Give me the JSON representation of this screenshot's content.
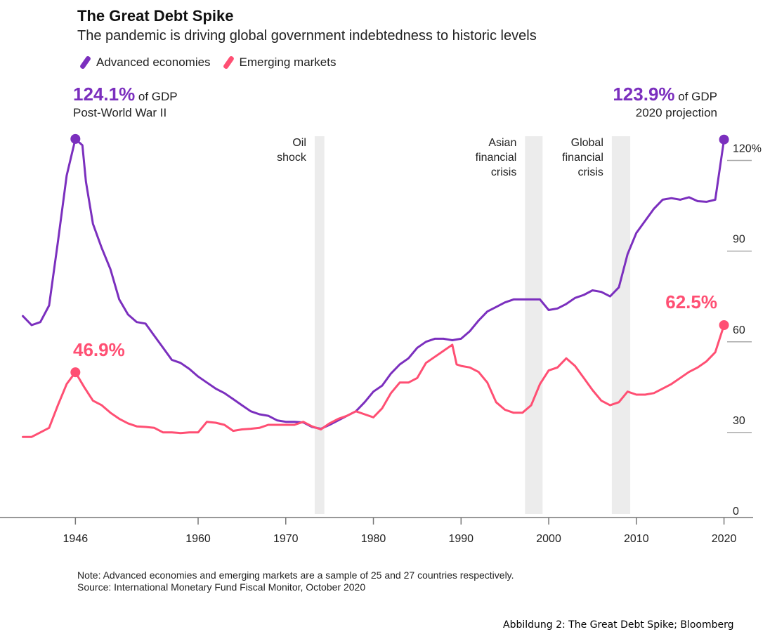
{
  "colors": {
    "advanced": "#7b2fbe",
    "emerging": "#ff4f73",
    "shade": "#ececec",
    "axis": "#aaaaaa"
  },
  "legend": {
    "advanced": "Advanced economies",
    "emerging": "Emerging markets"
  },
  "peaks": {
    "left": {
      "value": "124.1%",
      "unit": " of GDP",
      "note": "Post-World War II"
    },
    "right": {
      "value": "123.9%",
      "unit": " of GDP",
      "note": "2020 projection"
    },
    "em_left": "46.9%",
    "em_right": "62.5%"
  },
  "chart_data": {
    "type": "line",
    "title": "The Great Debt Spike",
    "subtitle": "The pandemic is driving global government indebtedness to historic levels",
    "xlabel": "",
    "ylabel": "",
    "xlim": [
      1939,
      2023
    ],
    "ylim": [
      0,
      125
    ],
    "x_ticks": [
      1946,
      1960,
      1970,
      1980,
      1990,
      2000,
      2010,
      2020
    ],
    "y_ticks": [
      {
        "value": 0,
        "label": "0"
      },
      {
        "value": 30,
        "label": "30"
      },
      {
        "value": 60,
        "label": "60"
      },
      {
        "value": 90,
        "label": "90"
      },
      {
        "value": 120,
        "label": "120%"
      }
    ],
    "grid": false,
    "legend_position": "top-left",
    "shaded_periods": [
      {
        "label": "Oil shock",
        "start": 1973.3,
        "end": 1974.4
      },
      {
        "label": "Asian financial crisis",
        "start": 1997.3,
        "end": 1999.3
      },
      {
        "label": "Global financial crisis",
        "start": 2007.2,
        "end": 2009.3
      }
    ],
    "series": [
      {
        "name": "Advanced economies",
        "points": [
          [
            1940,
            65.5
          ],
          [
            1941,
            62.5
          ],
          [
            1942,
            63.5
          ],
          [
            1943,
            69
          ],
          [
            1944,
            90
          ],
          [
            1945,
            112
          ],
          [
            1946,
            124.1
          ],
          [
            1946.8,
            122
          ],
          [
            1947.2,
            110
          ],
          [
            1948,
            96
          ],
          [
            1949,
            88
          ],
          [
            1950,
            81
          ],
          [
            1951,
            71
          ],
          [
            1952,
            66
          ],
          [
            1953,
            63.5
          ],
          [
            1954,
            63
          ],
          [
            1955,
            59
          ],
          [
            1956,
            55
          ],
          [
            1957,
            51
          ],
          [
            1958,
            50
          ],
          [
            1959,
            48
          ],
          [
            1960,
            45.5
          ],
          [
            1961,
            43.5
          ],
          [
            1962,
            41.5
          ],
          [
            1963,
            40
          ],
          [
            1964,
            38
          ],
          [
            1965,
            36
          ],
          [
            1966,
            34
          ],
          [
            1967,
            33
          ],
          [
            1968,
            32.5
          ],
          [
            1969,
            31
          ],
          [
            1970,
            30.5
          ],
          [
            1971,
            30.5
          ],
          [
            1972,
            30.3
          ],
          [
            1973,
            28.8
          ],
          [
            1974,
            28.2
          ],
          [
            1975,
            29.5
          ],
          [
            1976,
            31
          ],
          [
            1977,
            32.5
          ],
          [
            1978,
            34
          ],
          [
            1979,
            37
          ],
          [
            1980,
            40.5
          ],
          [
            1981,
            42.5
          ],
          [
            1982,
            46.5
          ],
          [
            1983,
            49.5
          ],
          [
            1984,
            51.5
          ],
          [
            1985,
            55
          ],
          [
            1986,
            57
          ],
          [
            1987,
            58
          ],
          [
            1988,
            58
          ],
          [
            1989,
            57.5
          ],
          [
            1990,
            58
          ],
          [
            1991,
            60.5
          ],
          [
            1992,
            64
          ],
          [
            1993,
            67
          ],
          [
            1994,
            68.5
          ],
          [
            1995,
            70
          ],
          [
            1996,
            71
          ],
          [
            1997,
            71
          ],
          [
            1998,
            71
          ],
          [
            1999,
            71
          ],
          [
            2000,
            67.5
          ],
          [
            2001,
            68
          ],
          [
            2002,
            69.5
          ],
          [
            2003,
            71.5
          ],
          [
            2004,
            72.5
          ],
          [
            2005,
            74
          ],
          [
            2006,
            73.5
          ],
          [
            2007,
            72
          ],
          [
            2008,
            75
          ],
          [
            2009,
            86
          ],
          [
            2010,
            93
          ],
          [
            2011,
            97
          ],
          [
            2012,
            101
          ],
          [
            2013,
            104
          ],
          [
            2014,
            104.5
          ],
          [
            2015,
            104
          ],
          [
            2016,
            104.8
          ],
          [
            2017,
            103.5
          ],
          [
            2018,
            103.3
          ],
          [
            2019,
            104
          ],
          [
            2020,
            123.9
          ]
        ]
      },
      {
        "name": "Emerging markets",
        "points": [
          [
            1940,
            25.5
          ],
          [
            1941,
            25.5
          ],
          [
            1942,
            27
          ],
          [
            1943,
            28.5
          ],
          [
            1944,
            36
          ],
          [
            1945,
            43
          ],
          [
            1946,
            46.9
          ],
          [
            1947,
            42
          ],
          [
            1948,
            37.5
          ],
          [
            1949,
            36
          ],
          [
            1950,
            33.5
          ],
          [
            1951,
            31.5
          ],
          [
            1952,
            30
          ],
          [
            1953,
            29
          ],
          [
            1954,
            28.8
          ],
          [
            1955,
            28.5
          ],
          [
            1956,
            27
          ],
          [
            1957,
            27
          ],
          [
            1958,
            26.8
          ],
          [
            1959,
            27
          ],
          [
            1960,
            27
          ],
          [
            1961,
            30.5
          ],
          [
            1962,
            30.2
          ],
          [
            1963,
            29.5
          ],
          [
            1964,
            27.5
          ],
          [
            1965,
            28
          ],
          [
            1966,
            28.2
          ],
          [
            1967,
            28.5
          ],
          [
            1968,
            29.5
          ],
          [
            1969,
            29.5
          ],
          [
            1970,
            29.5
          ],
          [
            1971,
            29.5
          ],
          [
            1972,
            30.5
          ],
          [
            1973,
            29
          ],
          [
            1974,
            28
          ],
          [
            1975,
            30
          ],
          [
            1976,
            31.5
          ],
          [
            1977,
            32.5
          ],
          [
            1978,
            34
          ],
          [
            1979,
            33
          ],
          [
            1980,
            32
          ],
          [
            1981,
            35
          ],
          [
            1982,
            40
          ],
          [
            1983,
            43.5
          ],
          [
            1984,
            43.5
          ],
          [
            1985,
            45
          ],
          [
            1986,
            50
          ],
          [
            1987,
            52
          ],
          [
            1988,
            54
          ],
          [
            1989,
            56
          ],
          [
            1989.5,
            49.5
          ],
          [
            1990,
            49
          ],
          [
            1991,
            48.5
          ],
          [
            1992,
            47
          ],
          [
            1993,
            43.5
          ],
          [
            1994,
            37
          ],
          [
            1995,
            34.5
          ],
          [
            1996,
            33.5
          ],
          [
            1997,
            33.5
          ],
          [
            1998,
            36
          ],
          [
            1999,
            43
          ],
          [
            2000,
            47.5
          ],
          [
            2001,
            48.5
          ],
          [
            2002,
            51.5
          ],
          [
            2003,
            49
          ],
          [
            2004,
            45
          ],
          [
            2005,
            41
          ],
          [
            2006,
            37.5
          ],
          [
            2007,
            36
          ],
          [
            2008,
            37
          ],
          [
            2009,
            40.5
          ],
          [
            2010,
            39.5
          ],
          [
            2011,
            39.5
          ],
          [
            2012,
            40
          ],
          [
            2013,
            41.5
          ],
          [
            2014,
            43
          ],
          [
            2015,
            45
          ],
          [
            2016,
            47
          ],
          [
            2017,
            48.5
          ],
          [
            2018,
            50.5
          ],
          [
            2019,
            53.5
          ],
          [
            2020,
            62.5
          ]
        ]
      }
    ],
    "note": "Note: Advanced economies and emerging markets are a sample of 25 and 27 countries respectively.",
    "source": "Source: International Monetary Fund Fiscal Monitor, October 2020"
  },
  "caption": "Abbildung 2: The Great Debt   Spike; Bloomberg"
}
